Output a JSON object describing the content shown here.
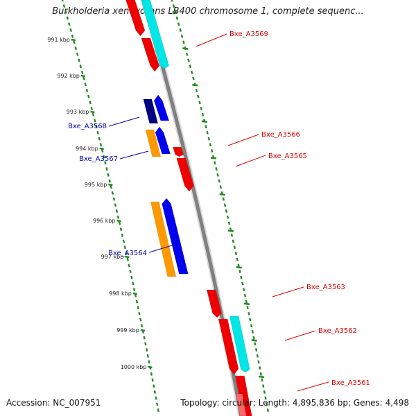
{
  "title": "Burkholderia xenovorans LB400 chromosome 1, complete sequenc...",
  "footer": {
    "accession": "Accession: NC_007951",
    "summary": "Topology: circular; Length: 4,895,836 bp; Genes: 4,498"
  },
  "ticks": [
    "991 kbp",
    "992 kbp",
    "993 kbp",
    "994 kbp",
    "995 kbp",
    "996 kbp",
    "997 kbp",
    "998 kbp",
    "999 kbp",
    "1000 kbp"
  ],
  "gene_labels": [
    {
      "name": "Bxe_A3569",
      "strand": "forward",
      "color": "#dd0000"
    },
    {
      "name": "Bxe_A3568",
      "strand": "reverse",
      "color": "#0000bb"
    },
    {
      "name": "Bxe_A3567",
      "strand": "reverse",
      "color": "#0000bb"
    },
    {
      "name": "Bxe_A3566",
      "strand": "forward",
      "color": "#dd0000"
    },
    {
      "name": "Bxe_A3565",
      "strand": "forward",
      "color": "#dd0000"
    },
    {
      "name": "Bxe_A3564",
      "strand": "reverse",
      "color": "#0000bb"
    },
    {
      "name": "Bxe_A3563",
      "strand": "forward",
      "color": "#dd0000"
    },
    {
      "name": "Bxe_A3562",
      "strand": "forward",
      "color": "#dd0000"
    },
    {
      "name": "Bxe_A3561",
      "strand": "forward",
      "color": "#dd0000"
    }
  ],
  "colors": {
    "forward_gene": "#ee0000",
    "forward_cds": "#00e5e5",
    "reverse_gene": "#0000ee",
    "reverse_cds": "#ff9900",
    "reverse_dark": "#000080",
    "backbone": "#808080",
    "ruler": "#228b22"
  }
}
